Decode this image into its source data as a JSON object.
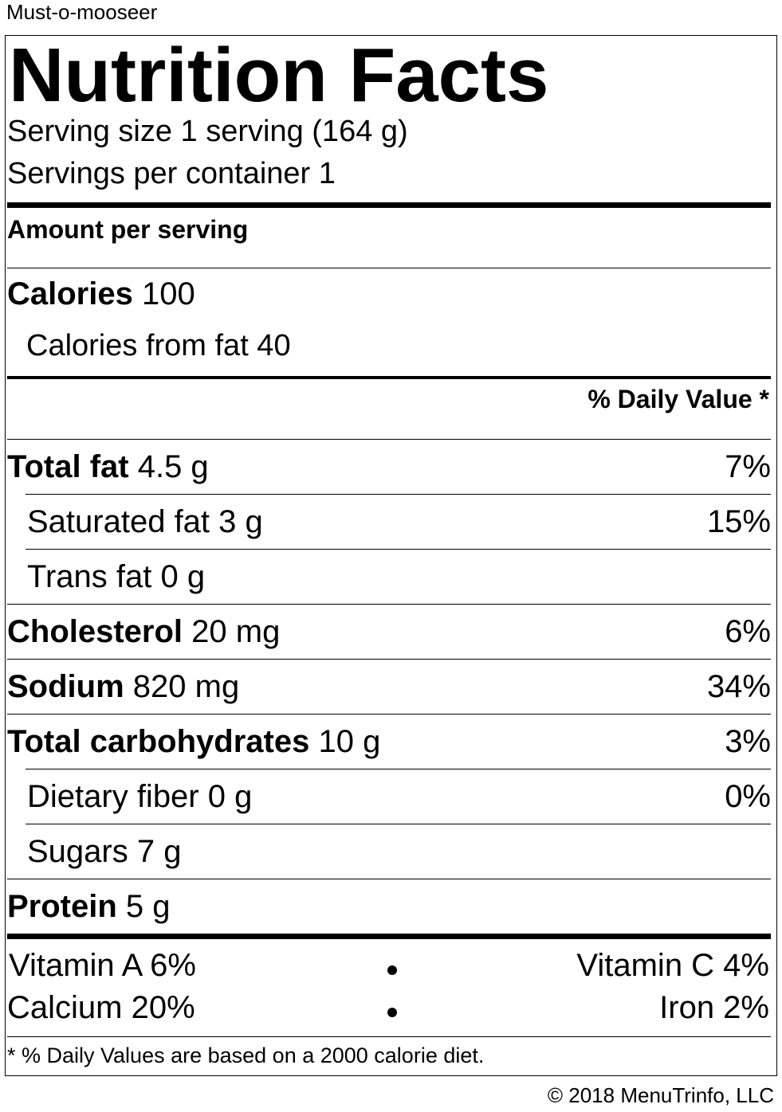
{
  "recipe_name": "Must-o-mooseer",
  "title": "Nutrition Facts",
  "serving_size": "Serving size 1 serving (164 g)",
  "servings_per_container": "Servings per container 1",
  "amount_per_serving": "Amount per serving",
  "calories": {
    "label": "Calories",
    "value": "100"
  },
  "calories_from_fat": "Calories from fat 40",
  "daily_value_header": "% Daily Value *",
  "nutrients": [
    {
      "label": "Total fat",
      "amount": "4.5 g",
      "dv": "7%"
    },
    {
      "label": "Saturated fat",
      "amount": "3 g",
      "dv": "15%"
    },
    {
      "label": "Trans fat",
      "amount": "0 g",
      "dv": ""
    },
    {
      "label": "Cholesterol",
      "amount": "20 mg",
      "dv": "6%"
    },
    {
      "label": "Sodium",
      "amount": "820 mg",
      "dv": "34%"
    },
    {
      "label": "Total carbohydrates",
      "amount": "10 g",
      "dv": "3%"
    },
    {
      "label": "Dietary fiber",
      "amount": "0 g",
      "dv": "0%"
    },
    {
      "label": "Sugars",
      "amount": "7 g",
      "dv": ""
    },
    {
      "label": "Protein",
      "amount": "5 g",
      "dv": ""
    }
  ],
  "vitamins": {
    "vitamin_a": "Vitamin A 6%",
    "vitamin_c": "Vitamin C 4%",
    "calcium": "Calcium 20%",
    "iron": "Iron 2%"
  },
  "footnote": "* % Daily Values are based on a 2000 calorie diet.",
  "copyright": "© 2018 MenuTrinfo, LLC"
}
